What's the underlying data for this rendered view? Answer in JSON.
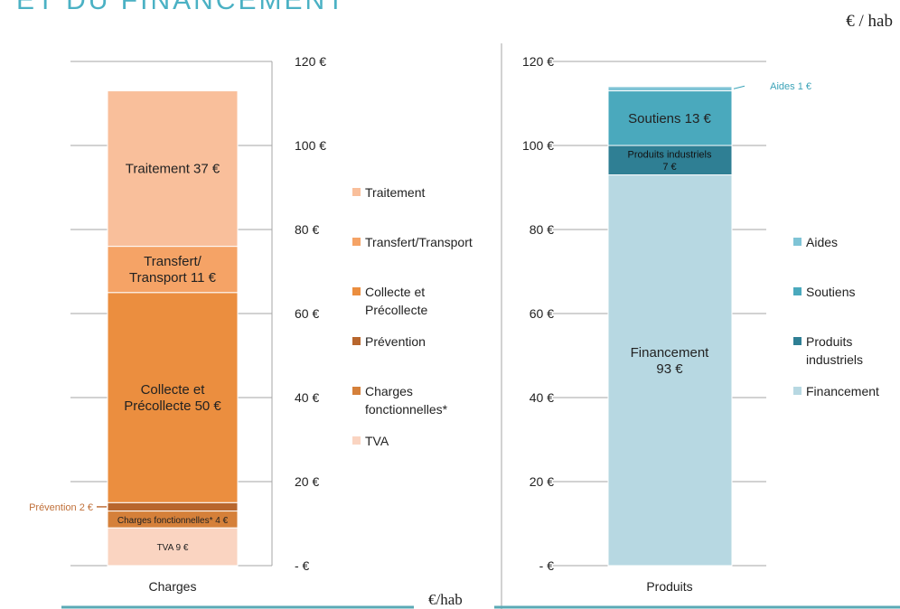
{
  "header": {
    "title_partial": "ET DU FINANCEMENT",
    "unit_top": "€ / hab",
    "unit_bottom": "€/hab"
  },
  "colors": {
    "traitement": "#f9bf9b",
    "transfert": "#f5a366",
    "collecte": "#eb8e3f",
    "prevention": "#b8662d",
    "charges_fonctionnelles": "#d5803a",
    "tva": "#fad4c1",
    "aides": "#7fc4d6",
    "soutiens": "#4aa9bd",
    "produits_industriels": "#2f7f94",
    "financement": "#b7d8e2",
    "annotation_orange": "#c0703a",
    "annotation_teal": "#3ba3b8"
  },
  "chart_data": [
    {
      "type": "bar",
      "stacked": true,
      "categories": [
        "Charges"
      ],
      "ylim": [
        0,
        120
      ],
      "yticks": [
        "-  €",
        "20 €",
        "40 €",
        "60 €",
        "80 €",
        "100 €",
        "120 €"
      ],
      "series": [
        {
          "name": "TVA",
          "values": [
            9
          ],
          "label": "TVA  9 €"
        },
        {
          "name": "Charges fonctionnelles*",
          "values": [
            4
          ],
          "label": "Charges fonctionnelles*  4 €"
        },
        {
          "name": "Prévention",
          "values": [
            2
          ],
          "label": "Prévention  2 €"
        },
        {
          "name": "Collecte et Précollecte",
          "values": [
            50
          ],
          "label": "Collecte et\nPrécollecte  50 €"
        },
        {
          "name": "Transfert/Transport",
          "values": [
            11
          ],
          "label": "Transfert/\nTransport  11 €"
        },
        {
          "name": "Traitement",
          "values": [
            37
          ],
          "label": "Traitement  37 €"
        }
      ],
      "legend": [
        {
          "key": "traitement",
          "label": "Traitement"
        },
        {
          "key": "transfert",
          "label": "Transfert/Transport"
        },
        {
          "key": "collecte",
          "label": "Collecte et\nPrécollecte"
        },
        {
          "key": "prevention",
          "label": "Prévention"
        },
        {
          "key": "charges_fonctionnelles",
          "label": "Charges\nfonctionnelles*"
        },
        {
          "key": "tva",
          "label": "TVA"
        }
      ],
      "legend_position": "right"
    },
    {
      "type": "bar",
      "stacked": true,
      "categories": [
        "Produits"
      ],
      "ylim": [
        0,
        120
      ],
      "yticks": [
        "-  €",
        "20 €",
        "40 €",
        "60 €",
        "80 €",
        "100 €",
        "120 €"
      ],
      "series": [
        {
          "name": "Financement",
          "values": [
            93
          ],
          "label": "Financement\n93 €"
        },
        {
          "name": "Produits industriels",
          "values": [
            7
          ],
          "label": "Produits industriels\n7 €"
        },
        {
          "name": "Soutiens",
          "values": [
            13
          ],
          "label": "Soutiens  13 €"
        },
        {
          "name": "Aides",
          "values": [
            1
          ],
          "label": "Aides  1 €"
        }
      ],
      "legend": [
        {
          "key": "aides",
          "label": "Aides"
        },
        {
          "key": "soutiens",
          "label": "Soutiens"
        },
        {
          "key": "produits_industriels",
          "label": "Produits\nindustriels"
        },
        {
          "key": "financement",
          "label": "Financement"
        }
      ],
      "legend_position": "right"
    }
  ]
}
